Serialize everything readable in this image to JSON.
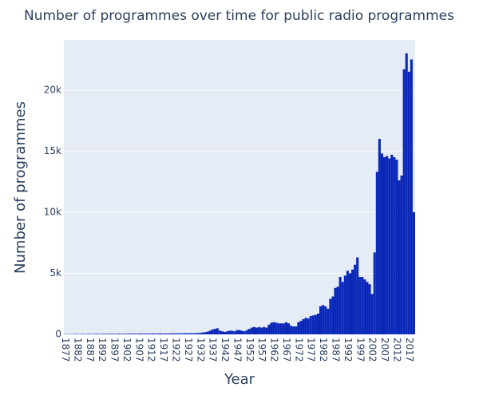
{
  "chart_data": {
    "type": "bar",
    "title": "Number of programmes over time for public radio programmes",
    "x_label": "Year",
    "y_label": "Number of programmes",
    "color": "#0a27b8",
    "grid": true,
    "x": [
      1877,
      1878,
      1879,
      1880,
      1881,
      1882,
      1883,
      1884,
      1885,
      1886,
      1887,
      1888,
      1889,
      1890,
      1891,
      1892,
      1893,
      1894,
      1895,
      1896,
      1897,
      1898,
      1899,
      1900,
      1901,
      1902,
      1903,
      1904,
      1905,
      1906,
      1907,
      1908,
      1909,
      1910,
      1911,
      1912,
      1913,
      1914,
      1915,
      1916,
      1917,
      1918,
      1919,
      1920,
      1921,
      1922,
      1923,
      1924,
      1925,
      1926,
      1927,
      1928,
      1929,
      1930,
      1931,
      1932,
      1933,
      1934,
      1935,
      1936,
      1937,
      1938,
      1939,
      1940,
      1941,
      1942,
      1943,
      1944,
      1945,
      1946,
      1947,
      1948,
      1949,
      1950,
      1951,
      1952,
      1953,
      1954,
      1955,
      1956,
      1957,
      1958,
      1959,
      1960,
      1961,
      1962,
      1963,
      1964,
      1965,
      1966,
      1967,
      1968,
      1969,
      1970,
      1971,
      1972,
      1973,
      1974,
      1975,
      1976,
      1977,
      1978,
      1979,
      1980,
      1981,
      1982,
      1983,
      1984,
      1985,
      1986,
      1987,
      1988,
      1989,
      1990,
      1991,
      1992,
      1993,
      1994,
      1995,
      1996,
      1997,
      1998,
      1999,
      2000,
      2001,
      2002,
      2003,
      2004,
      2005,
      2006,
      2007,
      2008,
      2009,
      2010,
      2011,
      2012,
      2013,
      2014,
      2015,
      2016,
      2017,
      2018,
      2019
    ],
    "values": [
      20,
      25,
      30,
      20,
      35,
      30,
      25,
      40,
      30,
      35,
      45,
      30,
      40,
      50,
      35,
      45,
      40,
      50,
      45,
      55,
      40,
      50,
      60,
      45,
      55,
      50,
      60,
      55,
      65,
      50,
      60,
      70,
      55,
      65,
      60,
      70,
      75,
      60,
      70,
      80,
      65,
      75,
      70,
      80,
      90,
      75,
      85,
      80,
      90,
      100,
      85,
      95,
      90,
      100,
      110,
      120,
      150,
      180,
      220,
      300,
      400,
      450,
      500,
      300,
      250,
      200,
      250,
      300,
      300,
      250,
      350,
      350,
      300,
      250,
      350,
      450,
      550,
      600,
      550,
      600,
      550,
      600,
      550,
      800,
      950,
      1000,
      950,
      900,
      900,
      900,
      1000,
      900,
      700,
      650,
      650,
      1000,
      1100,
      1250,
      1350,
      1300,
      1500,
      1550,
      1600,
      1700,
      2300,
      2400,
      2300,
      2100,
      2900,
      3100,
      3800,
      3900,
      4700,
      4300,
      4800,
      5200,
      5000,
      5300,
      5700,
      6300,
      4700,
      4700,
      4500,
      4300,
      4100,
      3300,
      6700,
      13300,
      16000,
      14800,
      14500,
      14600,
      14400,
      14700,
      14500,
      14300,
      12600,
      13000,
      21700,
      23000,
      21500,
      22500,
      10000
    ],
    "xlim": [
      1876.5,
      2019.5
    ],
    "xticks": [
      1877,
      1882,
      1887,
      1892,
      1897,
      1902,
      1907,
      1912,
      1917,
      1922,
      1927,
      1932,
      1937,
      1942,
      1947,
      1952,
      1957,
      1962,
      1967,
      1972,
      1977,
      1982,
      1987,
      1992,
      1997,
      2002,
      2007,
      2012,
      2017
    ],
    "ylim": [
      0,
      24100
    ],
    "yticks": [
      0,
      {
        "value": 5000,
        "label": "5k"
      },
      {
        "value": 10000,
        "label": "10k"
      },
      {
        "value": 15000,
        "label": "15k"
      },
      {
        "value": 20000,
        "label": "20k"
      }
    ]
  }
}
